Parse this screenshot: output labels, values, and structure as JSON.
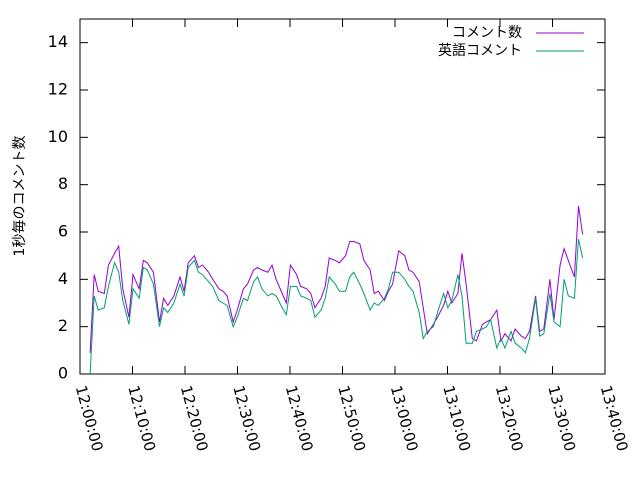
{
  "chart_data": {
    "type": "line",
    "title": "",
    "xlabel": "",
    "ylabel": "1秒毎のコメント数",
    "xlim": [
      "12:00:00",
      "13:40:00"
    ],
    "ylim": [
      0,
      15
    ],
    "x_ticks": [
      "12:00:00",
      "12:10:00",
      "12:20:00",
      "12:30:00",
      "12:40:00",
      "12:50:00",
      "13:00:00",
      "13:10:00",
      "13:20:00",
      "13:30:00",
      "13:40:00"
    ],
    "y_ticks": [
      0,
      2,
      4,
      6,
      8,
      10,
      12,
      14
    ],
    "grid": false,
    "legend_position": "top-right",
    "series": [
      {
        "name": "コメント数",
        "color": "#9400d3",
        "points": [
          [
            "12:01:55",
            0.9
          ],
          [
            "12:02:42",
            4.2
          ],
          [
            "12:03:28",
            3.5
          ],
          [
            "12:04:38",
            3.4
          ],
          [
            "12:05:25",
            4.6
          ],
          [
            "12:06:35",
            5.1
          ],
          [
            "12:07:22",
            5.4
          ],
          [
            "12:08:09",
            3.6
          ],
          [
            "12:09:19",
            2.4
          ],
          [
            "12:10:06",
            4.2
          ],
          [
            "12:11:16",
            3.6
          ],
          [
            "12:12:03",
            4.8
          ],
          [
            "12:12:49",
            4.7
          ],
          [
            "12:13:59",
            4.3
          ],
          [
            "12:15:09",
            2.2
          ],
          [
            "12:15:56",
            3.2
          ],
          [
            "12:16:43",
            2.9
          ],
          [
            "12:17:53",
            3.3
          ],
          [
            "12:19:03",
            4.1
          ],
          [
            "12:19:50",
            3.5
          ],
          [
            "12:20:37",
            4.7
          ],
          [
            "12:21:47",
            5.0
          ],
          [
            "12:22:33",
            4.5
          ],
          [
            "12:23:20",
            4.6
          ],
          [
            "12:24:30",
            4.3
          ],
          [
            "12:25:17",
            4.0
          ],
          [
            "12:26:27",
            3.6
          ],
          [
            "12:27:14",
            3.5
          ],
          [
            "12:28:01",
            3.3
          ],
          [
            "12:29:11",
            2.2
          ],
          [
            "12:29:57",
            2.7
          ],
          [
            "12:31:07",
            3.6
          ],
          [
            "12:31:54",
            3.8
          ],
          [
            "12:33:04",
            4.4
          ],
          [
            "12:33:51",
            4.5
          ],
          [
            "12:34:38",
            4.4
          ],
          [
            "12:35:48",
            4.3
          ],
          [
            "12:36:34",
            4.6
          ],
          [
            "12:37:21",
            4.0
          ],
          [
            "12:38:31",
            3.4
          ],
          [
            "12:39:18",
            3.0
          ],
          [
            "12:40:05",
            4.6
          ],
          [
            "12:41:15",
            4.2
          ],
          [
            "12:42:01",
            3.7
          ],
          [
            "12:43:11",
            3.6
          ],
          [
            "12:43:58",
            3.4
          ],
          [
            "12:44:45",
            2.8
          ],
          [
            "12:45:55",
            3.2
          ],
          [
            "12:46:42",
            3.7
          ],
          [
            "12:47:28",
            4.9
          ],
          [
            "12:48:38",
            4.8
          ],
          [
            "12:49:25",
            4.7
          ],
          [
            "12:50:35",
            5.0
          ],
          [
            "12:51:22",
            5.6
          ],
          [
            "12:52:08",
            5.6
          ],
          [
            "12:53:18",
            5.5
          ],
          [
            "12:54:05",
            4.8
          ],
          [
            "12:55:15",
            4.4
          ],
          [
            "12:56:02",
            3.4
          ],
          [
            "12:56:49",
            3.5
          ],
          [
            "12:57:59",
            3.1
          ],
          [
            "12:58:45",
            3.5
          ],
          [
            "12:59:32",
            3.8
          ],
          [
            "13:00:42",
            5.2
          ],
          [
            "13:01:52",
            5.0
          ],
          [
            "13:02:39",
            4.4
          ],
          [
            "13:03:26",
            4.3
          ],
          [
            "13:04:36",
            3.9
          ],
          [
            "13:05:22",
            2.8
          ],
          [
            "13:06:09",
            1.7
          ],
          [
            "13:07:19",
            2.1
          ],
          [
            "13:08:06",
            2.4
          ],
          [
            "13:09:16",
            2.9
          ],
          [
            "13:10:03",
            3.5
          ],
          [
            "13:10:49",
            3.0
          ],
          [
            "13:11:59",
            3.4
          ],
          [
            "13:12:46",
            5.1
          ],
          [
            "13:13:33",
            3.8
          ],
          [
            "13:14:43",
            1.5
          ],
          [
            "13:15:30",
            1.4
          ],
          [
            "13:16:40",
            2.1
          ],
          [
            "13:17:26",
            2.2
          ],
          [
            "13:18:13",
            2.3
          ],
          [
            "13:19:23",
            2.7
          ],
          [
            "13:20:10",
            1.4
          ],
          [
            "13:20:56",
            1.7
          ],
          [
            "13:22:06",
            1.4
          ],
          [
            "13:22:53",
            1.9
          ],
          [
            "13:24:03",
            1.6
          ],
          [
            "13:24:50",
            1.5
          ],
          [
            "13:25:37",
            1.8
          ],
          [
            "13:26:47",
            3.3
          ],
          [
            "13:27:33",
            1.8
          ],
          [
            "13:28:20",
            1.9
          ],
          [
            "13:29:30",
            4.0
          ],
          [
            "13:30:17",
            2.3
          ],
          [
            "13:31:27",
            4.6
          ],
          [
            "13:32:13",
            5.3
          ],
          [
            "13:33:00",
            4.8
          ],
          [
            "13:34:10",
            4.1
          ],
          [
            "13:34:57",
            7.1
          ],
          [
            "13:35:44",
            5.9
          ]
        ]
      },
      {
        "name": "英語コメント",
        "color": "#009e73",
        "points": [
          [
            "12:01:55",
            0.0
          ],
          [
            "12:02:42",
            3.3
          ],
          [
            "12:03:28",
            2.7
          ],
          [
            "12:04:38",
            2.8
          ],
          [
            "12:05:25",
            3.7
          ],
          [
            "12:06:35",
            4.7
          ],
          [
            "12:07:22",
            4.3
          ],
          [
            "12:08:09",
            3.1
          ],
          [
            "12:09:19",
            2.1
          ],
          [
            "12:10:06",
            3.6
          ],
          [
            "12:11:16",
            3.2
          ],
          [
            "12:12:03",
            4.5
          ],
          [
            "12:12:49",
            4.4
          ],
          [
            "12:13:59",
            3.8
          ],
          [
            "12:15:09",
            2.0
          ],
          [
            "12:15:56",
            2.8
          ],
          [
            "12:16:43",
            2.6
          ],
          [
            "12:17:53",
            3.0
          ],
          [
            "12:19:03",
            3.8
          ],
          [
            "12:19:50",
            3.3
          ],
          [
            "12:20:37",
            4.5
          ],
          [
            "12:21:47",
            4.8
          ],
          [
            "12:22:33",
            4.3
          ],
          [
            "12:23:20",
            4.2
          ],
          [
            "12:24:30",
            3.9
          ],
          [
            "12:25:17",
            3.7
          ],
          [
            "12:26:27",
            3.1
          ],
          [
            "12:27:14",
            3.0
          ],
          [
            "12:28:01",
            2.9
          ],
          [
            "12:29:11",
            2.0
          ],
          [
            "12:29:57",
            2.4
          ],
          [
            "12:31:07",
            3.2
          ],
          [
            "12:31:54",
            3.1
          ],
          [
            "12:33:04",
            3.9
          ],
          [
            "12:33:51",
            4.1
          ],
          [
            "12:34:38",
            3.6
          ],
          [
            "12:35:48",
            3.3
          ],
          [
            "12:36:34",
            3.4
          ],
          [
            "12:37:21",
            3.3
          ],
          [
            "12:38:31",
            2.8
          ],
          [
            "12:39:18",
            2.5
          ],
          [
            "12:40:05",
            3.7
          ],
          [
            "12:41:15",
            3.7
          ],
          [
            "12:42:01",
            3.3
          ],
          [
            "12:43:11",
            3.2
          ],
          [
            "12:43:58",
            3.1
          ],
          [
            "12:44:45",
            2.4
          ],
          [
            "12:45:55",
            2.7
          ],
          [
            "12:46:42",
            3.2
          ],
          [
            "12:47:28",
            4.1
          ],
          [
            "12:48:38",
            3.8
          ],
          [
            "12:49:25",
            3.5
          ],
          [
            "12:50:35",
            3.5
          ],
          [
            "12:51:22",
            4.1
          ],
          [
            "12:52:08",
            4.3
          ],
          [
            "12:53:18",
            3.8
          ],
          [
            "12:54:05",
            3.4
          ],
          [
            "12:55:15",
            2.7
          ],
          [
            "12:56:02",
            3.0
          ],
          [
            "12:56:49",
            2.9
          ],
          [
            "12:57:59",
            3.2
          ],
          [
            "12:58:45",
            3.6
          ],
          [
            "12:59:32",
            4.3
          ],
          [
            "13:00:42",
            4.3
          ],
          [
            "13:01:52",
            4.0
          ],
          [
            "13:02:39",
            3.7
          ],
          [
            "13:03:26",
            3.5
          ],
          [
            "13:04:36",
            2.6
          ],
          [
            "13:05:22",
            1.5
          ],
          [
            "13:06:09",
            1.8
          ],
          [
            "13:07:19",
            2.0
          ],
          [
            "13:08:06",
            2.6
          ],
          [
            "13:09:16",
            3.4
          ],
          [
            "13:10:03",
            2.8
          ],
          [
            "13:10:49",
            3.1
          ],
          [
            "13:11:59",
            4.2
          ],
          [
            "13:12:46",
            3.3
          ],
          [
            "13:13:33",
            1.3
          ],
          [
            "13:14:43",
            1.3
          ],
          [
            "13:15:30",
            1.8
          ],
          [
            "13:16:40",
            1.9
          ],
          [
            "13:17:26",
            2.0
          ],
          [
            "13:18:13",
            2.3
          ],
          [
            "13:19:23",
            1.1
          ],
          [
            "13:20:10",
            1.5
          ],
          [
            "13:20:56",
            1.1
          ],
          [
            "13:22:06",
            1.8
          ],
          [
            "13:22:53",
            1.3
          ],
          [
            "13:24:03",
            1.1
          ],
          [
            "13:24:50",
            0.9
          ],
          [
            "13:25:37",
            1.5
          ],
          [
            "13:26:47",
            3.2
          ],
          [
            "13:27:33",
            1.6
          ],
          [
            "13:28:20",
            1.7
          ],
          [
            "13:29:30",
            3.4
          ],
          [
            "13:30:17",
            2.2
          ],
          [
            "13:31:27",
            2.0
          ],
          [
            "13:32:13",
            4.0
          ],
          [
            "13:33:00",
            3.3
          ],
          [
            "13:34:10",
            3.2
          ],
          [
            "13:34:57",
            5.7
          ],
          [
            "13:35:44",
            4.9
          ]
        ]
      }
    ]
  }
}
